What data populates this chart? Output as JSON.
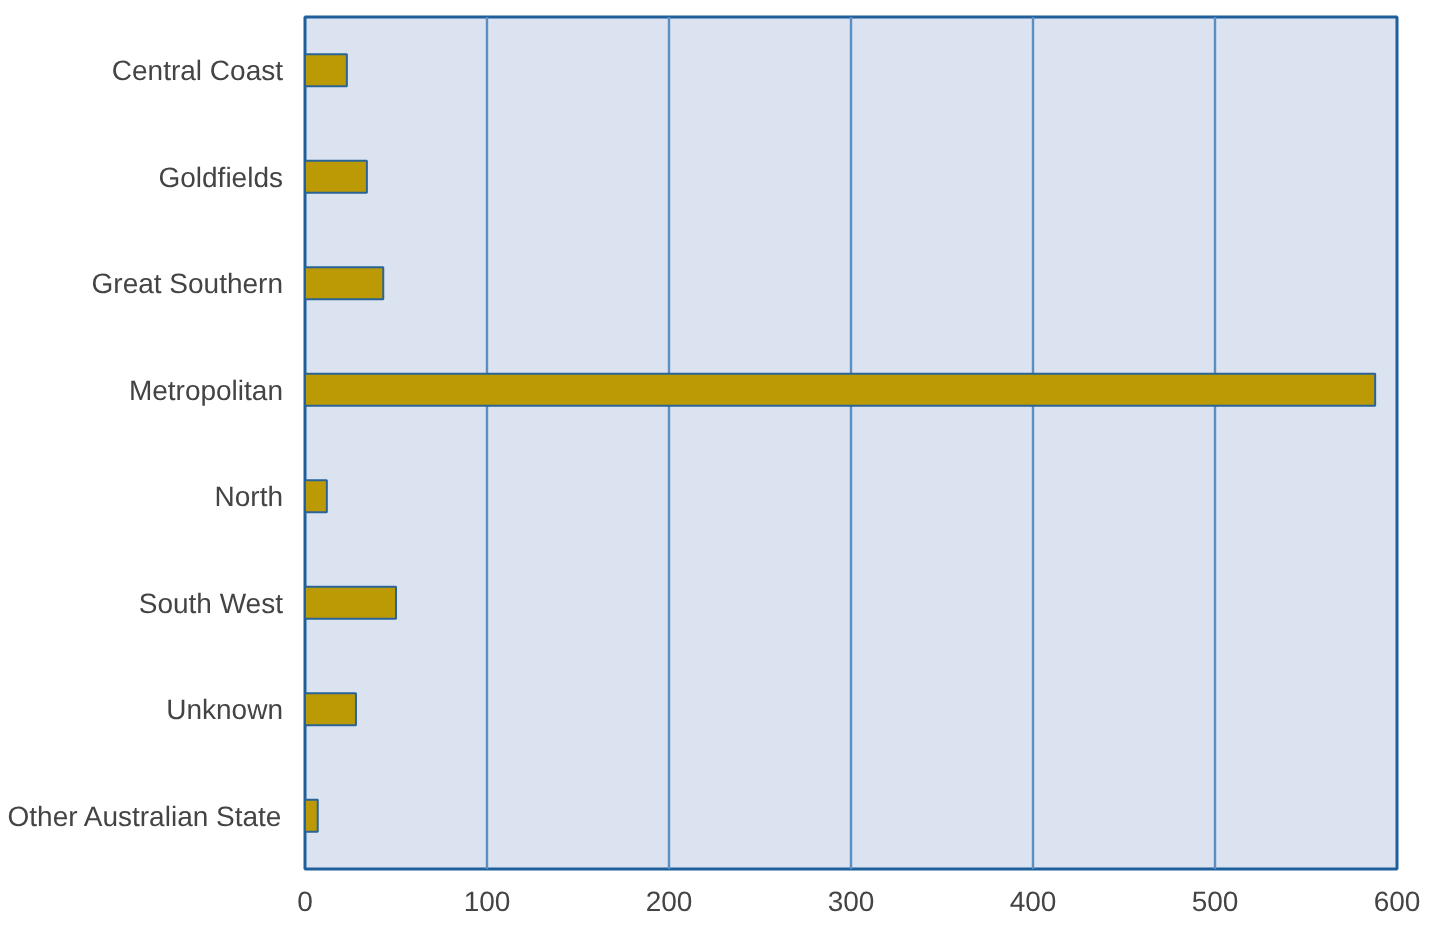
{
  "chart_data": {
    "type": "bar",
    "orientation": "horizontal",
    "categories": [
      "Central Coast",
      "Goldfields",
      "Great Southern",
      "Metropolitan",
      "North",
      "South West",
      "Unknown",
      "Other Australian State"
    ],
    "values": [
      23,
      34,
      43,
      588,
      12,
      50,
      28,
      7
    ],
    "color": "#bc9a06",
    "xlim": [
      0,
      600
    ],
    "xticks": [
      0,
      100,
      200,
      300,
      400,
      500,
      600
    ],
    "grid": "x"
  }
}
